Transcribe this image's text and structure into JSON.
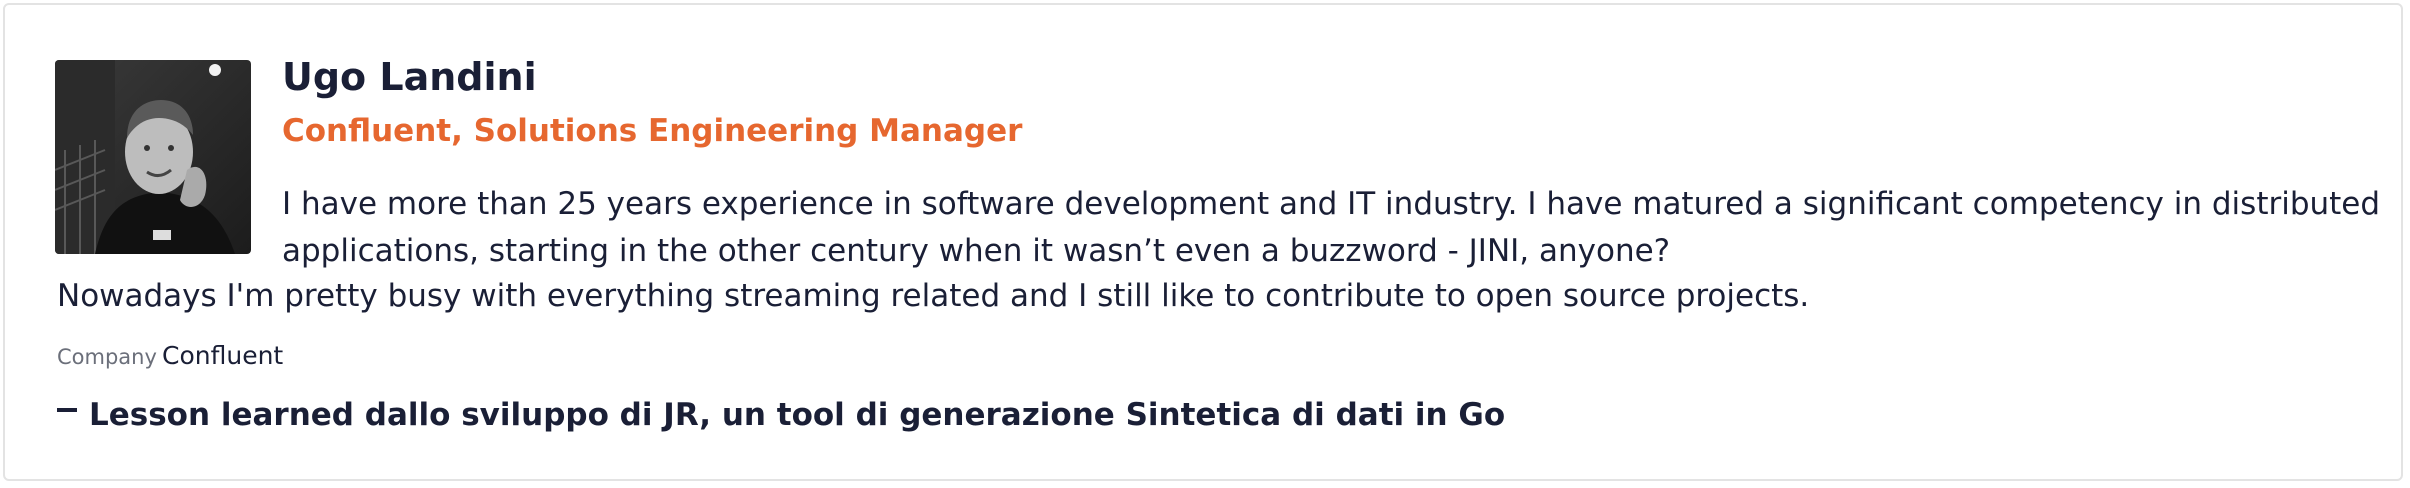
{
  "speaker": {
    "name": "Ugo Landini",
    "role": "Confluent, Solutions Engineering Manager",
    "bio_lines": [
      "I have more than 25 years experience in software development and IT industry. I have matured a significant competency in distributed",
      "applications, starting in the other century when it wasn’t even a buzzword - JINI, anyone?",
      "Nowadays I'm pretty busy with everything streaming related and I still like to contribute to open source projects."
    ],
    "company_label": "Company",
    "company_value": "Confluent"
  },
  "talks": [
    {
      "title": "Lesson learned dallo sviluppo di JR, un tool di generazione Sintetica di dati in Go"
    }
  ],
  "colors": {
    "accent": "#e6672f",
    "text": "#1a1f36",
    "muted": "#6b6f7a",
    "border": "#e3e3e3"
  },
  "icons": {
    "avatar": "speaker-photo",
    "talk_marker": "dash-icon"
  }
}
